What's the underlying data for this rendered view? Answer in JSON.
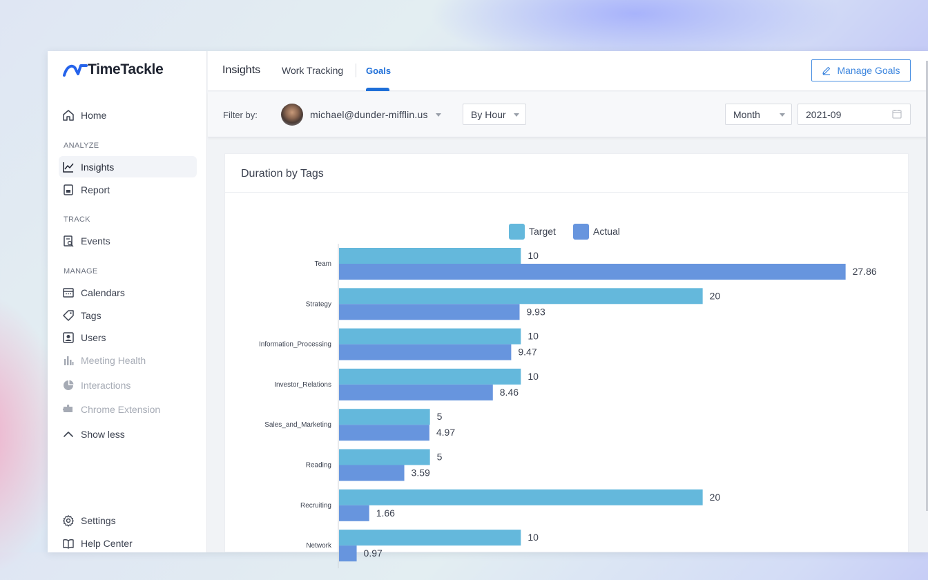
{
  "app": {
    "logo_text": "TimeTackle"
  },
  "sidebar": {
    "home": "Home",
    "sections": {
      "analyze": "ANALYZE",
      "track": "TRACK",
      "manage": "MANAGE"
    },
    "items": {
      "insights": "Insights",
      "report": "Report",
      "events": "Events",
      "calendars": "Calendars",
      "tags": "Tags",
      "users": "Users",
      "meeting_health": "Meeting Health",
      "interactions": "Interactions",
      "chrome_extension": "Chrome Extension",
      "show_less": "Show less",
      "settings": "Settings",
      "help_center": "Help Center"
    }
  },
  "header": {
    "title": "Insights",
    "tabs": [
      "Work Tracking",
      "Goals"
    ],
    "active_tab": "Goals",
    "manage_goals": "Manage Goals"
  },
  "filters": {
    "label": "Filter by:",
    "user_email": "michael@dunder-mifflin.us",
    "group_by": "By Hour",
    "period": "Month",
    "date": "2021-09"
  },
  "card": {
    "title": "Duration by Tags"
  },
  "colors": {
    "accent": "#1f6fd8",
    "target": "#64b8dc",
    "actual": "#6795de"
  },
  "chart_data": {
    "type": "bar",
    "orientation": "horizontal",
    "categories": [
      "Team",
      "Strategy",
      "Information_Processing",
      "Investor_Relations",
      "Sales_and_Marketing",
      "Reading",
      "Recruiting",
      "Network"
    ],
    "series": [
      {
        "name": "Target",
        "values": [
          10,
          20,
          10,
          10,
          5,
          5,
          20,
          10
        ]
      },
      {
        "name": "Actual",
        "values": [
          27.86,
          9.93,
          9.47,
          8.46,
          4.97,
          3.59,
          1.66,
          0.97
        ]
      }
    ],
    "data_labels": {
      "Target": [
        "10",
        "20",
        "10",
        "10",
        "5",
        "5",
        "20",
        "10"
      ],
      "Actual": [
        "27.86",
        "9.93",
        "9.47",
        "8.46",
        "4.97",
        "3.59",
        "1.66",
        "0.97"
      ]
    },
    "xlim": [
      0,
      30
    ],
    "legend_position": "top-center",
    "grid": false
  }
}
